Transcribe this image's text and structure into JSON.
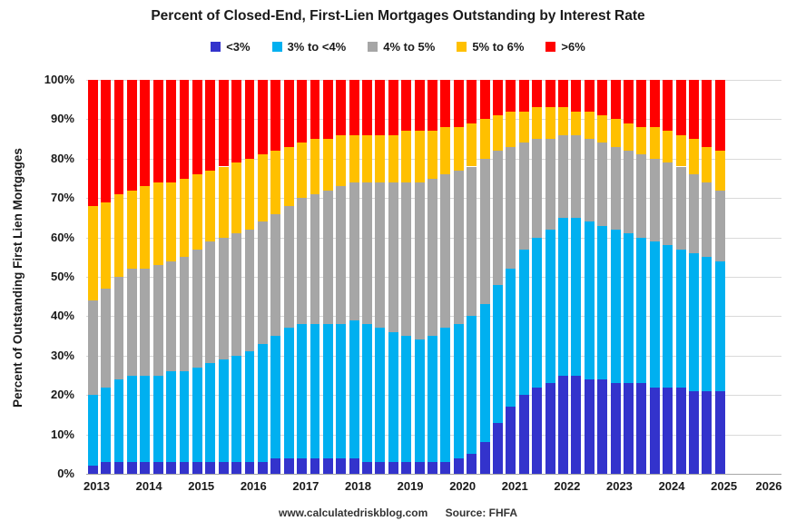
{
  "title": "Percent of Closed-End, First-Lien Mortgages Outstanding by Interest Rate",
  "ylabel": "Percent of Outstanding First Lien Mortgages",
  "footer": {
    "site": "www.calculatedriskblog.com",
    "source": "Source: FHFA"
  },
  "chart_data": {
    "type": "bar",
    "stacked": true,
    "stacked_to_100": true,
    "grid": true,
    "legend_position": "top",
    "ylim": [
      0,
      100
    ],
    "y_ticks": [
      "0%",
      "10%",
      "20%",
      "30%",
      "40%",
      "50%",
      "60%",
      "70%",
      "80%",
      "90%",
      "100%"
    ],
    "y_tick_values": [
      0,
      10,
      20,
      30,
      40,
      50,
      60,
      70,
      80,
      90,
      100
    ],
    "x_axis_years": [
      "2013",
      "2014",
      "2015",
      "2016",
      "2017",
      "2018",
      "2019",
      "2020",
      "2021",
      "2022",
      "2023",
      "2024",
      "2025",
      "2026"
    ],
    "x": [
      "2013 Q1",
      "2013 Q2",
      "2013 Q3",
      "2013 Q4",
      "2014 Q1",
      "2014 Q2",
      "2014 Q3",
      "2014 Q4",
      "2015 Q1",
      "2015 Q2",
      "2015 Q3",
      "2015 Q4",
      "2016 Q1",
      "2016 Q2",
      "2016 Q3",
      "2016 Q4",
      "2017 Q1",
      "2017 Q2",
      "2017 Q3",
      "2017 Q4",
      "2018 Q1",
      "2018 Q2",
      "2018 Q3",
      "2018 Q4",
      "2019 Q1",
      "2019 Q2",
      "2019 Q3",
      "2019 Q4",
      "2020 Q1",
      "2020 Q2",
      "2020 Q3",
      "2020 Q4",
      "2021 Q1",
      "2021 Q2",
      "2021 Q3",
      "2021 Q4",
      "2022 Q1",
      "2022 Q2",
      "2022 Q3",
      "2022 Q4",
      "2023 Q1",
      "2023 Q2",
      "2023 Q3",
      "2023 Q4",
      "2024 Q1",
      "2024 Q2",
      "2024 Q3",
      "2024 Q4",
      "2025 Q1"
    ],
    "series": [
      {
        "name": "<3%",
        "color": "#3333cc",
        "values": [
          2,
          3,
          3,
          3,
          3,
          3,
          3,
          3,
          3,
          3,
          3,
          3,
          3,
          3,
          4,
          4,
          4,
          4,
          4,
          4,
          4,
          3,
          3,
          3,
          3,
          3,
          3,
          3,
          4,
          5,
          8,
          13,
          17,
          20,
          22,
          23,
          25,
          25,
          24,
          24,
          23,
          23,
          23,
          22,
          22,
          22,
          21,
          21,
          21
        ]
      },
      {
        "name": "3% to <4%",
        "color": "#00b0f0",
        "values": [
          18,
          19,
          21,
          22,
          22,
          22,
          23,
          23,
          24,
          25,
          26,
          27,
          28,
          30,
          31,
          33,
          34,
          34,
          34,
          34,
          35,
          35,
          34,
          33,
          32,
          31,
          32,
          34,
          34,
          35,
          35,
          35,
          35,
          37,
          38,
          39,
          40,
          40,
          40,
          39,
          39,
          38,
          37,
          37,
          36,
          35,
          35,
          34,
          33
        ]
      },
      {
        "name": "4% to 5%",
        "color": "#a6a6a6",
        "values": [
          24,
          25,
          26,
          27,
          27,
          28,
          28,
          29,
          30,
          31,
          31,
          31,
          31,
          31,
          31,
          31,
          32,
          33,
          34,
          35,
          35,
          36,
          37,
          38,
          39,
          40,
          40,
          39,
          39,
          38,
          37,
          34,
          31,
          27,
          25,
          23,
          21,
          21,
          21,
          21,
          21,
          21,
          21,
          21,
          21,
          21,
          20,
          19,
          18
        ]
      },
      {
        "name": "5% to 6%",
        "color": "#ffc000",
        "values": [
          24,
          22,
          21,
          20,
          21,
          21,
          20,
          20,
          19,
          18,
          18,
          18,
          18,
          17,
          16,
          15,
          14,
          14,
          13,
          13,
          12,
          12,
          12,
          12,
          13,
          13,
          12,
          12,
          11,
          11,
          10,
          9,
          9,
          8,
          8,
          8,
          7,
          6,
          7,
          7,
          7,
          7,
          7,
          8,
          8,
          8,
          9,
          9,
          10
        ]
      },
      {
        "name": ">6%",
        "color": "#ff0000",
        "values": [
          32,
          31,
          29,
          28,
          27,
          26,
          26,
          25,
          24,
          23,
          22,
          21,
          20,
          19,
          18,
          17,
          16,
          15,
          15,
          14,
          14,
          14,
          14,
          14,
          13,
          13,
          13,
          12,
          12,
          11,
          10,
          9,
          8,
          8,
          7,
          7,
          7,
          8,
          8,
          9,
          10,
          11,
          12,
          12,
          13,
          14,
          15,
          17,
          18
        ]
      }
    ]
  }
}
